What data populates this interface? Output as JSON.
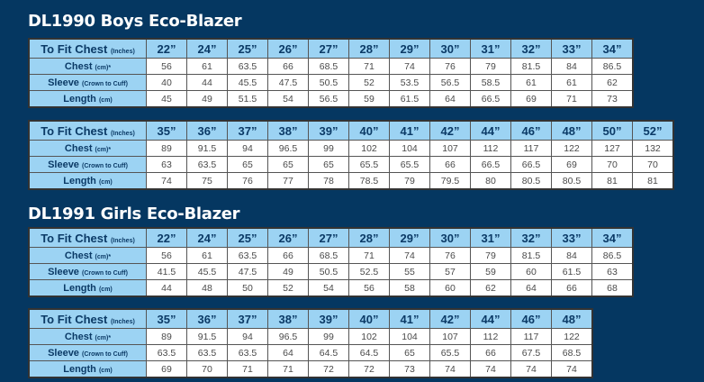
{
  "sections": [
    {
      "title": "DL1990 Boys Eco-Blazer",
      "tables": [
        {
          "sizes": [
            "22”",
            "24”",
            "25”",
            "26”",
            "27”",
            "28”",
            "29”",
            "30”",
            "31”",
            "32”",
            "33”",
            "34”"
          ],
          "chest": [
            "56",
            "61",
            "63.5",
            "66",
            "68.5",
            "71",
            "74",
            "76",
            "79",
            "81.5",
            "84",
            "86.5"
          ],
          "sleeve": [
            "40",
            "44",
            "45.5",
            "47.5",
            "50.5",
            "52",
            "53.5",
            "56.5",
            "58.5",
            "61",
            "61",
            "62"
          ],
          "length": [
            "45",
            "49",
            "51.5",
            "54",
            "56.5",
            "59",
            "61.5",
            "64",
            "66.5",
            "69",
            "71",
            "73"
          ]
        },
        {
          "sizes": [
            "35”",
            "36”",
            "37”",
            "38”",
            "39”",
            "40”",
            "41”",
            "42”",
            "44”",
            "46”",
            "48”",
            "50”",
            "52”"
          ],
          "chest": [
            "89",
            "91.5",
            "94",
            "96.5",
            "99",
            "102",
            "104",
            "107",
            "112",
            "117",
            "122",
            "127",
            "132"
          ],
          "sleeve": [
            "63",
            "63.5",
            "65",
            "65",
            "65",
            "65.5",
            "65.5",
            "66",
            "66.5",
            "66.5",
            "69",
            "70",
            "70"
          ],
          "length": [
            "74",
            "75",
            "76",
            "77",
            "78",
            "78.5",
            "79",
            "79.5",
            "80",
            "80.5",
            "80.5",
            "81",
            "81"
          ]
        }
      ]
    },
    {
      "title": "DL1991 Girls Eco-Blazer",
      "tables": [
        {
          "sizes": [
            "22”",
            "24”",
            "25”",
            "26”",
            "27”",
            "28”",
            "29”",
            "30”",
            "31”",
            "32”",
            "33”",
            "34”"
          ],
          "chest": [
            "56",
            "61",
            "63.5",
            "66",
            "68.5",
            "71",
            "74",
            "76",
            "79",
            "81.5",
            "84",
            "86.5"
          ],
          "sleeve": [
            "41.5",
            "45.5",
            "47.5",
            "49",
            "50.5",
            "52.5",
            "55",
            "57",
            "59",
            "60",
            "61.5",
            "63"
          ],
          "length": [
            "44",
            "48",
            "50",
            "52",
            "54",
            "56",
            "58",
            "60",
            "62",
            "64",
            "66",
            "68"
          ]
        },
        {
          "sizes": [
            "35”",
            "36”",
            "37”",
            "38”",
            "39”",
            "40”",
            "41”",
            "42”",
            "44”",
            "46”",
            "48”"
          ],
          "chest": [
            "89",
            "91.5",
            "94",
            "96.5",
            "99",
            "102",
            "104",
            "107",
            "112",
            "117",
            "122"
          ],
          "sleeve": [
            "63.5",
            "63.5",
            "63.5",
            "64",
            "64.5",
            "64.5",
            "65",
            "65.5",
            "66",
            "67.5",
            "68.5"
          ],
          "length": [
            "69",
            "70",
            "71",
            "71",
            "72",
            "72",
            "73",
            "74",
            "74",
            "74",
            "74"
          ]
        }
      ]
    }
  ],
  "labels": {
    "fit_main": "To Fit Chest",
    "fit_sub": "(Inches)",
    "chest_main": "Chest",
    "chest_sub": "(cm)*",
    "sleeve_main": "Sleeve",
    "sleeve_sub": "(Crown to Cuff)",
    "length_main": "Length",
    "length_sub": "(cm)"
  },
  "colors": {
    "background": "#053761",
    "header": "#9cd3f3",
    "header_text": "#0b3a66"
  }
}
